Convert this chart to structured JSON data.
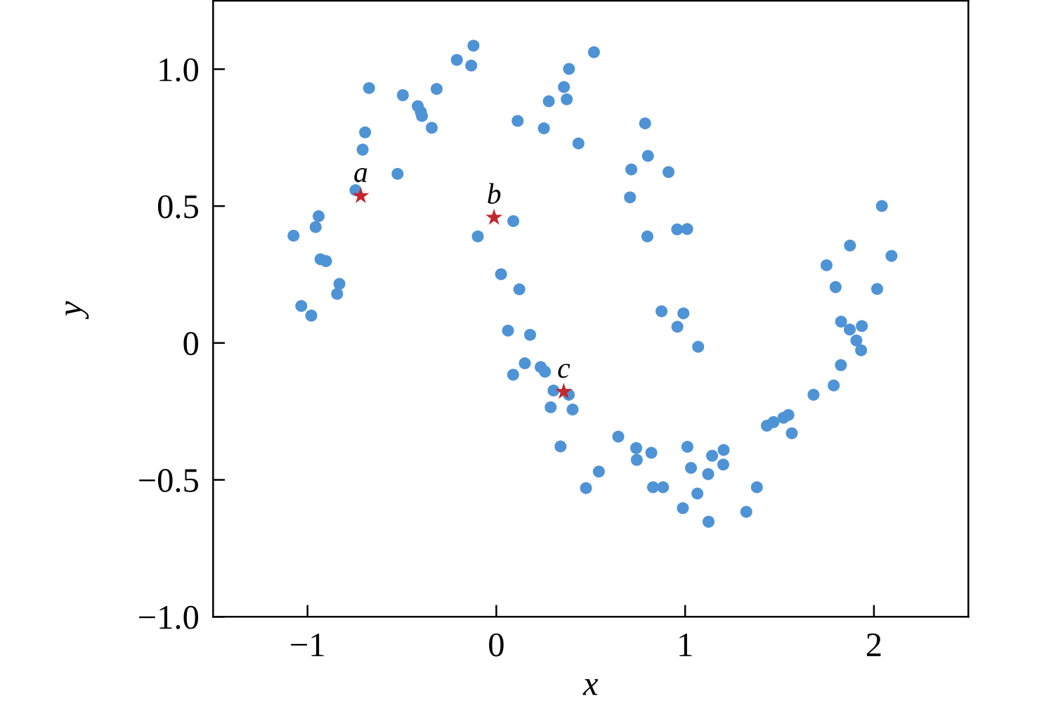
{
  "chart_data": {
    "type": "scatter",
    "xlabel": "x",
    "ylabel": "y",
    "xlim": [
      -1.5,
      2.5
    ],
    "ylim": [
      -1.0,
      1.25
    ],
    "xticks": [
      {
        "value": -1,
        "label": "−1"
      },
      0,
      1,
      2
    ],
    "yticks": [
      {
        "value": -1.0,
        "label": "−1.0"
      },
      {
        "value": -0.5,
        "label": "−0.5"
      },
      0,
      {
        "value": 0.5,
        "label": "0.5"
      },
      {
        "value": 1.0,
        "label": "1.0"
      }
    ],
    "series": [
      {
        "color": "#4e93d5",
        "marker": "circle",
        "x": [
          -1.074,
          -1.033,
          -0.98,
          -0.957,
          -0.941,
          -0.931,
          -0.902,
          -0.843,
          -0.831,
          -0.746,
          -0.708,
          -0.695,
          -0.674,
          -0.523,
          -0.495,
          -0.416,
          -0.4,
          -0.394,
          -0.342,
          -0.316,
          -0.209,
          -0.133,
          -0.121,
          -0.098,
          0.09,
          0.113,
          0.252,
          0.278,
          0.358,
          0.373,
          0.385,
          0.435,
          0.517,
          0.708,
          0.715,
          0.788,
          0.8,
          0.803,
          0.912,
          0.958,
          1.011,
          0.875,
          0.991,
          0.959,
          1.069,
          0.025,
          0.122,
          0.062,
          0.179,
          0.151,
          0.089,
          0.235,
          0.258,
          0.303,
          0.288,
          0.384,
          0.404,
          0.34,
          0.475,
          0.543,
          0.646,
          0.741,
          0.744,
          0.821,
          0.83,
          0.883,
          0.988,
          1.012,
          1.031,
          1.065,
          1.122,
          1.124,
          1.143,
          1.202,
          1.204,
          1.324,
          1.38,
          1.433,
          1.468,
          1.521,
          1.547,
          1.565,
          1.68,
          1.787,
          1.825,
          1.826,
          1.872,
          1.907,
          1.932,
          1.936,
          1.749,
          1.797,
          1.873,
          2.017,
          2.042,
          2.093
        ],
        "values": [
          0.392,
          0.135,
          0.1,
          0.423,
          0.463,
          0.306,
          0.299,
          0.179,
          0.216,
          0.558,
          0.706,
          0.769,
          0.931,
          0.618,
          0.905,
          0.865,
          0.844,
          0.829,
          0.786,
          0.928,
          1.034,
          1.013,
          1.086,
          0.389,
          0.445,
          0.811,
          0.784,
          0.883,
          0.935,
          0.89,
          1.001,
          0.729,
          1.062,
          0.532,
          0.634,
          0.802,
          0.389,
          0.683,
          0.624,
          0.415,
          0.416,
          0.116,
          0.108,
          0.059,
          -0.014,
          0.251,
          0.196,
          0.045,
          0.03,
          -0.074,
          -0.116,
          -0.088,
          -0.105,
          -0.174,
          -0.235,
          -0.189,
          -0.243,
          -0.378,
          -0.53,
          -0.47,
          -0.342,
          -0.384,
          -0.427,
          -0.401,
          -0.527,
          -0.527,
          -0.603,
          -0.379,
          -0.456,
          -0.55,
          -0.479,
          -0.653,
          -0.412,
          -0.444,
          -0.391,
          -0.617,
          -0.527,
          -0.302,
          -0.289,
          -0.273,
          -0.263,
          -0.33,
          -0.189,
          -0.155,
          -0.081,
          0.078,
          0.049,
          0.009,
          -0.027,
          0.062,
          0.284,
          0.204,
          0.356,
          0.197,
          0.5,
          0.318
        ]
      },
      {
        "color": "#c1272d",
        "marker": "star",
        "x": [
          -0.718,
          -0.012,
          0.357
        ],
        "values": [
          0.537,
          0.458,
          -0.178
        ]
      }
    ],
    "annotations": [
      {
        "text": "a",
        "x": -0.718,
        "y": 0.537
      },
      {
        "text": "b",
        "x": -0.012,
        "y": 0.458
      },
      {
        "text": "c",
        "x": 0.357,
        "y": -0.178
      }
    ]
  }
}
